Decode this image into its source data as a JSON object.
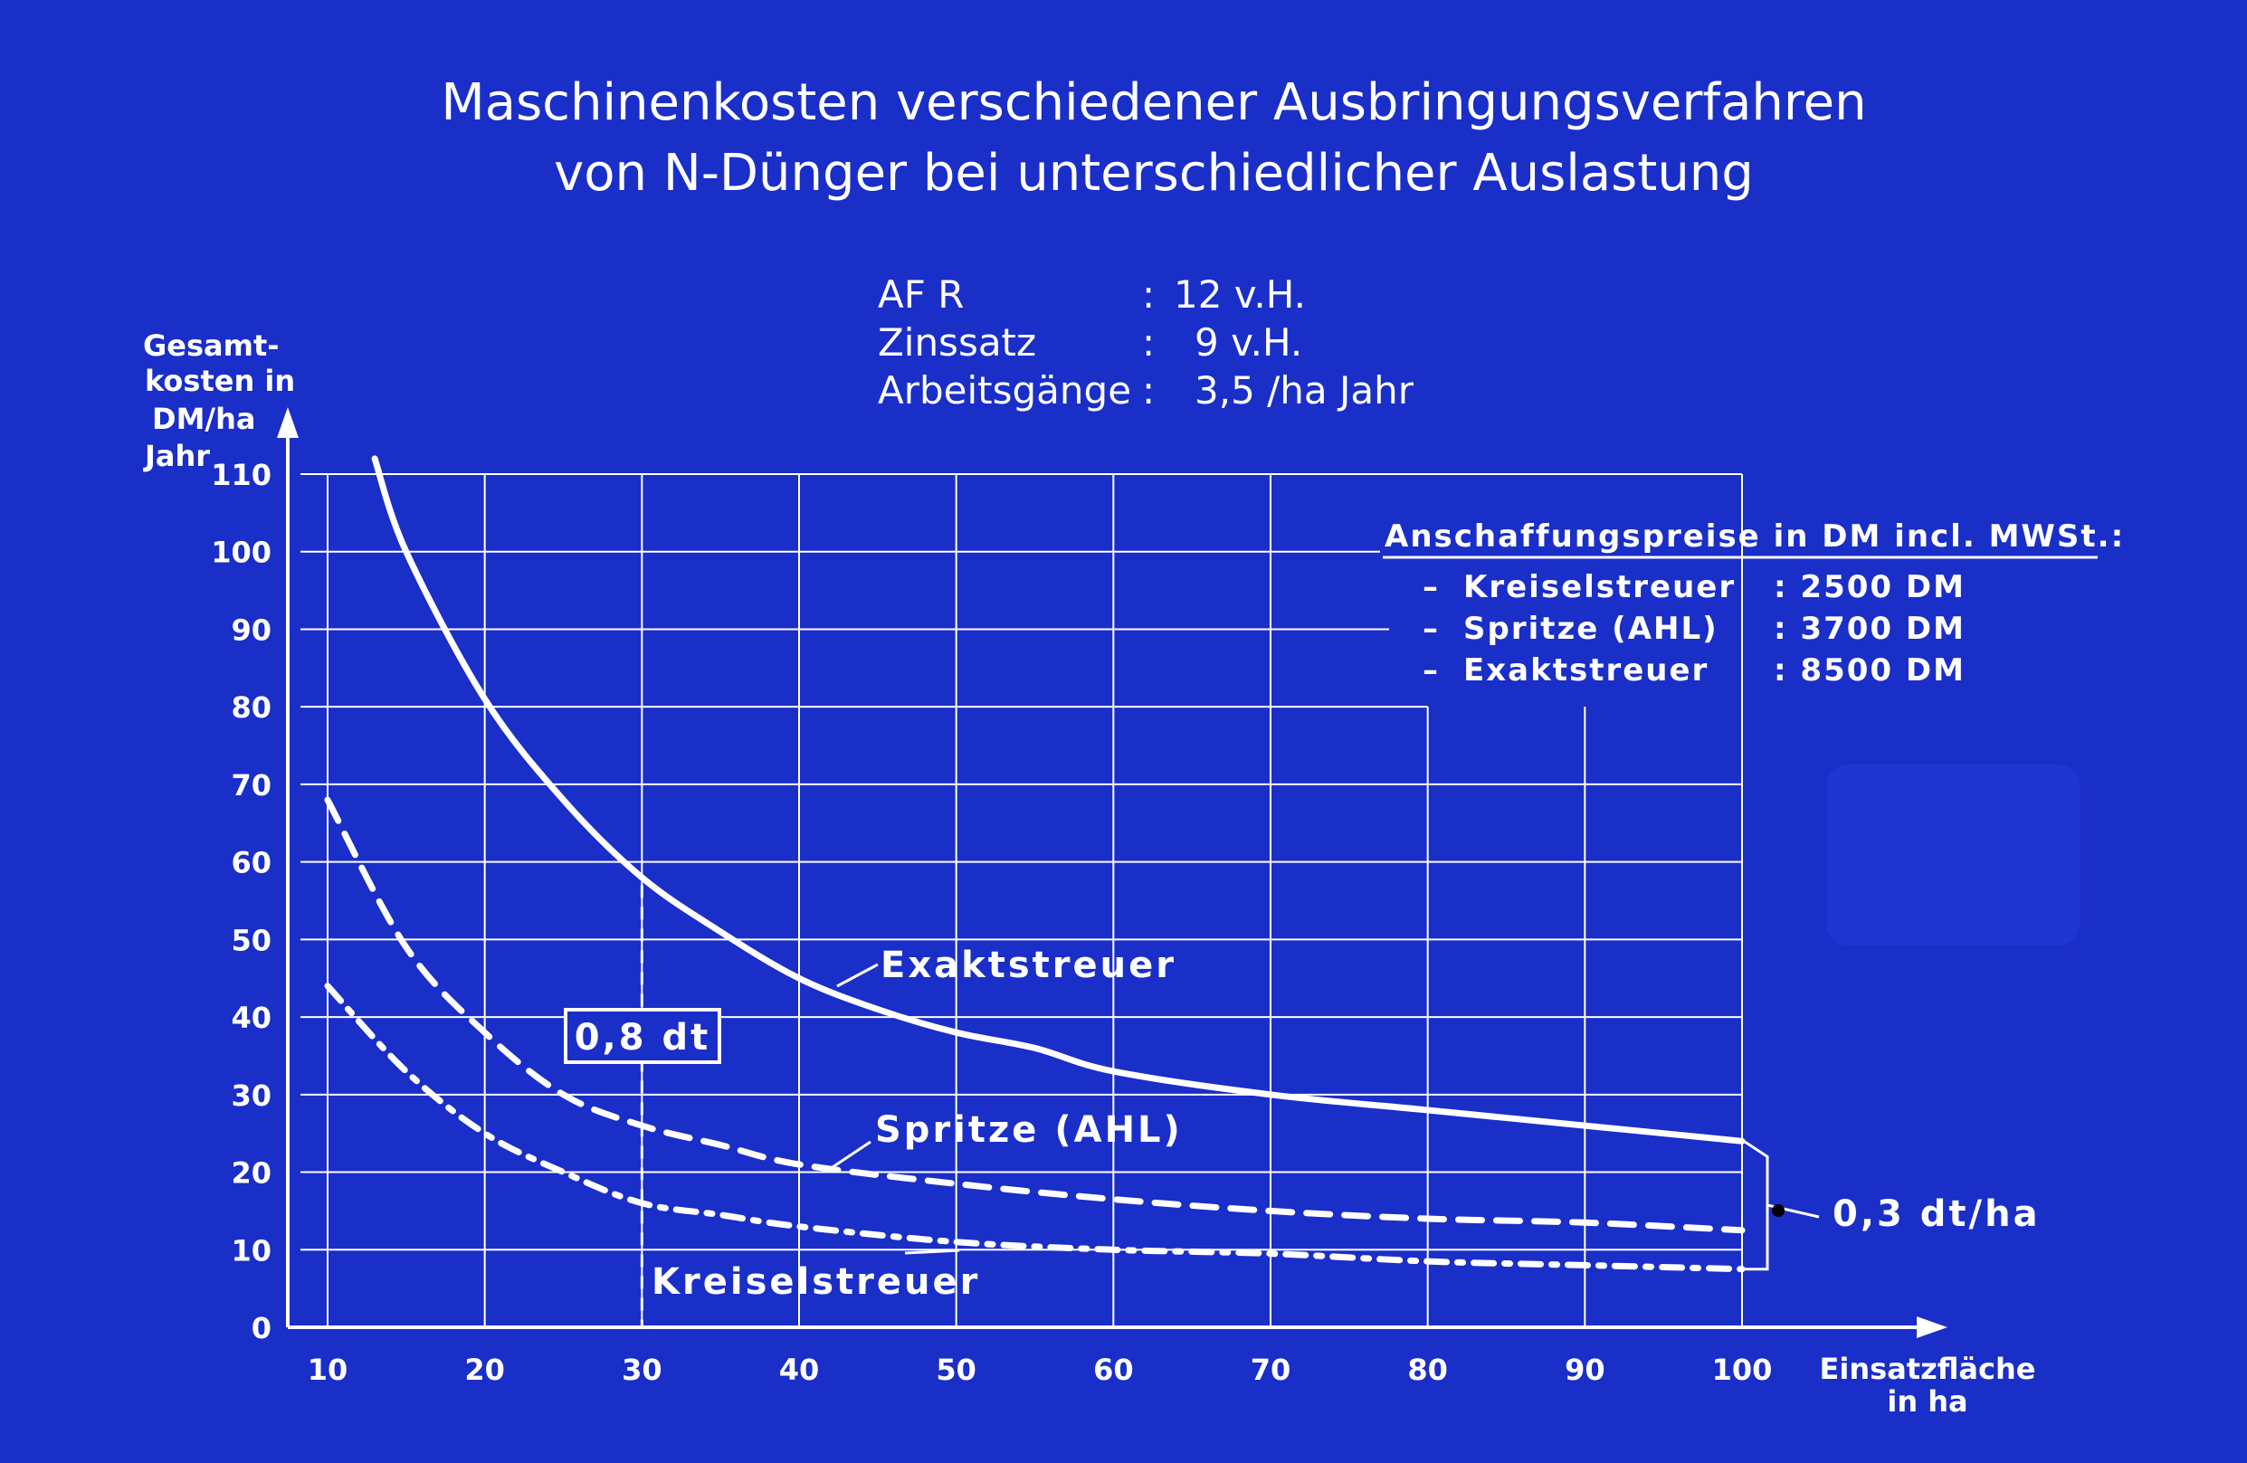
{
  "chart_data": {
    "type": "line",
    "title": [
      "Maschinenkosten verschiedener Ausbringungsverfahren",
      "von N-Dünger bei unterschiedlicher Auslastung"
    ],
    "params": [
      {
        "label": "AF R",
        "sep": ":",
        "value": "12 v.H."
      },
      {
        "label": "Zinssatz",
        "sep": ":",
        "value": "9 v.H."
      },
      {
        "label": "Arbeitsgänge",
        "sep": ":",
        "value": "3,5 /ha Jahr"
      }
    ],
    "ylabel": [
      "Gesamt-",
      "kosten in",
      "DM/ha",
      "Jahr"
    ],
    "xlabel": [
      "Einsatzfläche",
      "in ha"
    ],
    "xlim": [
      10,
      100
    ],
    "ylim": [
      0,
      110
    ],
    "xticks": [
      10,
      20,
      30,
      40,
      50,
      60,
      70,
      80,
      90,
      100
    ],
    "yticks": [
      0,
      10,
      20,
      30,
      40,
      50,
      60,
      70,
      80,
      90,
      100,
      110
    ],
    "grid": true,
    "legend_title": "Anschaffungspreise in DM incl. MWSt.:",
    "legend": [
      {
        "name": "Kreiselstreuer",
        "price": ": 2500 DM"
      },
      {
        "name": "Spritze (AHL)",
        "price": ": 3700 DM"
      },
      {
        "name": "Exaktstreuer",
        "price": ": 8500 DM"
      }
    ],
    "series": [
      {
        "name": "Exaktstreuer",
        "label": "Exaktstreuer",
        "style": "solid",
        "x": [
          13,
          15,
          20,
          25,
          30,
          35,
          40,
          45,
          50,
          55,
          60,
          70,
          80,
          90,
          100
        ],
        "y": [
          112,
          100,
          81,
          68,
          58,
          51,
          45,
          41,
          38,
          36,
          33,
          30,
          28,
          26,
          24
        ]
      },
      {
        "name": "Spritze (AHL)",
        "label": "Spritze (AHL)",
        "style": "dashed",
        "x": [
          10,
          15,
          20,
          25,
          30,
          35,
          40,
          50,
          60,
          70,
          80,
          90,
          100
        ],
        "y": [
          68,
          49,
          38,
          30,
          26,
          23.5,
          21,
          18.5,
          16.5,
          15,
          14,
          13.5,
          12.5
        ]
      },
      {
        "name": "Kreiselstreuer",
        "label": "Kreiselstreuer",
        "style": "dashdot",
        "x": [
          10,
          15,
          20,
          25,
          30,
          35,
          40,
          50,
          60,
          70,
          80,
          90,
          100
        ],
        "y": [
          44,
          33,
          25,
          20,
          16,
          14.5,
          13,
          11,
          10,
          9.5,
          8.5,
          8,
          7.5
        ]
      }
    ],
    "annotations": [
      {
        "text": "0,8 dt",
        "x": 30
      },
      {
        "text": "0,3 dt/ha",
        "x": 100
      }
    ]
  },
  "colors": {
    "background": "#1a2ec8",
    "ink": "#ffffff"
  }
}
